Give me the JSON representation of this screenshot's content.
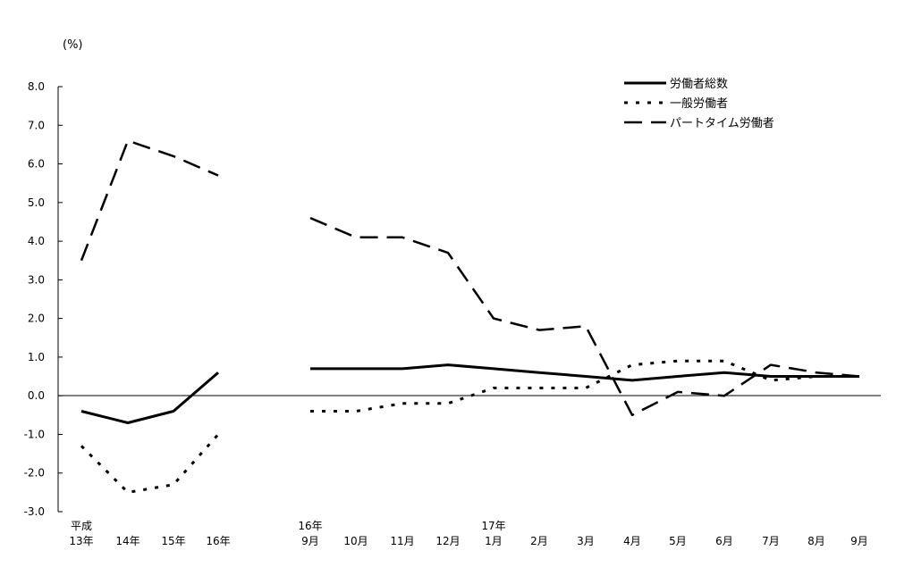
{
  "chart_data": {
    "type": "line",
    "unit_label": "(%)",
    "ylim": [
      -3.0,
      8.0
    ],
    "y_ticks": [
      "8.0",
      "7.0",
      "6.0",
      "5.0",
      "4.0",
      "3.0",
      "2.0",
      "1.0",
      "0.0",
      "-1.0",
      "-2.0",
      "-3.0"
    ],
    "x_labels": [
      {
        "top": "平成",
        "bottom": "13年"
      },
      {
        "top": "",
        "bottom": "14年"
      },
      {
        "top": "",
        "bottom": "15年"
      },
      {
        "top": "",
        "bottom": "16年"
      },
      {
        "top": "16年",
        "bottom": "9月"
      },
      {
        "top": "",
        "bottom": "10月"
      },
      {
        "top": "",
        "bottom": "11月"
      },
      {
        "top": "",
        "bottom": "12月"
      },
      {
        "top": "17年",
        "bottom": "1月"
      },
      {
        "top": "",
        "bottom": "2月"
      },
      {
        "top": "",
        "bottom": "3月"
      },
      {
        "top": "",
        "bottom": "4月"
      },
      {
        "top": "",
        "bottom": "5月"
      },
      {
        "top": "",
        "bottom": "6月"
      },
      {
        "top": "",
        "bottom": "7月"
      },
      {
        "top": "",
        "bottom": "8月"
      },
      {
        "top": "",
        "bottom": "9月"
      }
    ],
    "series": [
      {
        "name": "労働者総数",
        "style": "solid",
        "values": [
          -0.4,
          -0.7,
          -0.4,
          0.6,
          0.7,
          0.7,
          0.7,
          0.8,
          0.7,
          0.6,
          0.5,
          0.4,
          0.5,
          0.6,
          0.5,
          0.5,
          0.5
        ]
      },
      {
        "name": "一般労働者",
        "style": "dotted",
        "values": [
          -1.3,
          -2.5,
          -2.3,
          -1.0,
          -0.4,
          -0.4,
          -0.2,
          -0.2,
          0.2,
          0.2,
          0.2,
          0.8,
          0.9,
          0.9,
          0.4,
          0.5,
          0.5
        ]
      },
      {
        "name": "パートタイム労働者",
        "style": "dashed",
        "values": [
          3.5,
          6.6,
          6.2,
          5.7,
          4.6,
          4.1,
          4.1,
          3.7,
          2.0,
          1.7,
          1.8,
          -0.5,
          0.1,
          0.0,
          0.8,
          0.6,
          0.5
        ]
      }
    ]
  }
}
